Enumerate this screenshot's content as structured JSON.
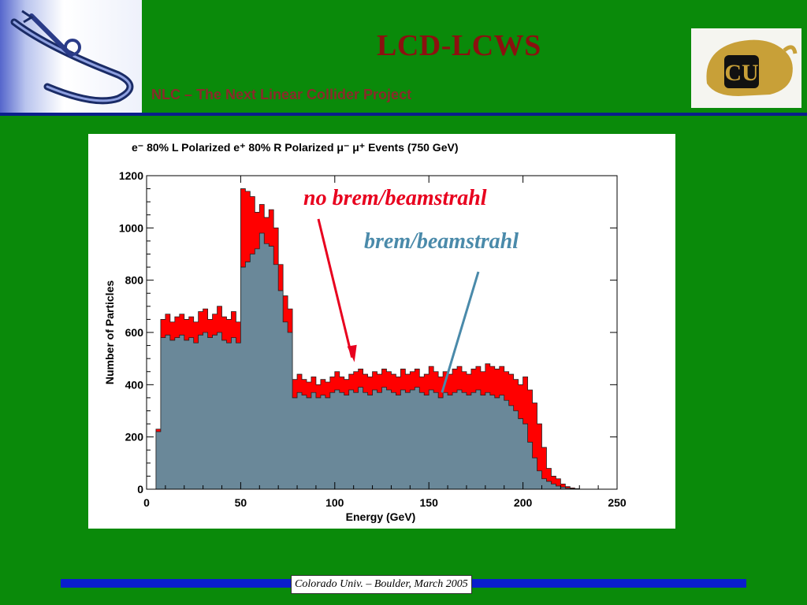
{
  "header": {
    "title": "LCD-LCWS",
    "subtitle": "NLC – The Next Linear Collider Project"
  },
  "logos": {
    "left": "nlc-linac-logo",
    "right": "cu-buffalo-logo",
    "right_lettering": "CU"
  },
  "footer": {
    "text": "Colorado Univ. – Boulder, March 2005"
  },
  "colors": {
    "background": "#0a8a0a",
    "title": "#8c1010",
    "rule": "#0a1e8c",
    "series_no_brem": "#ff0000",
    "series_brem": "#6a8899",
    "annotation_no_brem": "#e8001e",
    "annotation_brem": "#4a8aaa"
  },
  "chart_data": {
    "type": "area",
    "title": "e⁻ 80% L Polarized e⁺ 80% R Polarized μ⁻ μ⁺ Events (750 GeV)",
    "xlabel": "Energy (GeV)",
    "ylabel": "Number of Particles",
    "xlim": [
      0,
      250
    ],
    "ylim": [
      0,
      1200
    ],
    "xticks": [
      "0",
      "50",
      "100",
      "150",
      "200",
      "250"
    ],
    "yticks": [
      "0",
      "200",
      "400",
      "600",
      "800",
      "1000",
      "1200"
    ],
    "grid": false,
    "bin_width": 2.5,
    "x": [
      0,
      2.5,
      5,
      7.5,
      10,
      12.5,
      15,
      17.5,
      20,
      22.5,
      25,
      27.5,
      30,
      32.5,
      35,
      37.5,
      40,
      42.5,
      45,
      47.5,
      50,
      52.5,
      55,
      57.5,
      60,
      62.5,
      65,
      67.5,
      70,
      72.5,
      75,
      77.5,
      80,
      82.5,
      85,
      87.5,
      90,
      92.5,
      95,
      97.5,
      100,
      102.5,
      105,
      107.5,
      110,
      112.5,
      115,
      117.5,
      120,
      122.5,
      125,
      127.5,
      130,
      132.5,
      135,
      137.5,
      140,
      142.5,
      145,
      147.5,
      150,
      152.5,
      155,
      157.5,
      160,
      162.5,
      165,
      167.5,
      170,
      172.5,
      175,
      177.5,
      180,
      182.5,
      185,
      187.5,
      190,
      192.5,
      195,
      197.5,
      200,
      202.5,
      205,
      207.5,
      210,
      212.5,
      215,
      217.5,
      220,
      222.5,
      225,
      227.5,
      230,
      232.5,
      235,
      237.5,
      240,
      242.5,
      245,
      247.5
    ],
    "series": [
      {
        "name": "no brem/beamstrahl",
        "values": [
          0,
          0,
          230,
          650,
          670,
          640,
          660,
          670,
          650,
          660,
          640,
          680,
          690,
          650,
          670,
          700,
          660,
          650,
          680,
          640,
          1150,
          1140,
          1120,
          1060,
          1090,
          1040,
          1070,
          1000,
          860,
          740,
          690,
          420,
          440,
          420,
          410,
          430,
          400,
          420,
          410,
          430,
          450,
          430,
          420,
          440,
          450,
          460,
          440,
          430,
          450,
          440,
          460,
          450,
          440,
          430,
          460,
          440,
          450,
          460,
          430,
          440,
          470,
          450,
          430,
          450,
          440,
          460,
          470,
          450,
          440,
          460,
          470,
          450,
          480,
          470,
          460,
          470,
          450,
          440,
          420,
          400,
          430,
          380,
          330,
          250,
          160,
          80,
          50,
          40,
          20,
          10,
          5,
          2,
          0,
          0,
          0,
          0,
          0,
          0,
          0,
          0
        ]
      },
      {
        "name": "brem/beamstrahl",
        "values": [
          0,
          0,
          220,
          580,
          590,
          570,
          580,
          590,
          570,
          580,
          560,
          590,
          600,
          580,
          590,
          600,
          570,
          560,
          580,
          560,
          850,
          870,
          900,
          920,
          980,
          940,
          930,
          860,
          760,
          640,
          600,
          350,
          370,
          360,
          350,
          370,
          350,
          360,
          350,
          370,
          380,
          370,
          360,
          380,
          370,
          390,
          370,
          360,
          380,
          370,
          390,
          380,
          370,
          360,
          380,
          370,
          380,
          390,
          370,
          360,
          380,
          370,
          350,
          370,
          360,
          370,
          380,
          370,
          360,
          370,
          380,
          360,
          370,
          360,
          350,
          360,
          340,
          320,
          300,
          270,
          250,
          180,
          120,
          70,
          40,
          30,
          20,
          12,
          8,
          4,
          2,
          0,
          0,
          0,
          0,
          0,
          0,
          0,
          0,
          0
        ]
      }
    ],
    "annotations": [
      {
        "text": "no brem/beamstrahl",
        "target": [
          110,
          480
        ]
      },
      {
        "text": "brem/beamstrahl",
        "target": [
          157,
          370
        ]
      }
    ]
  }
}
